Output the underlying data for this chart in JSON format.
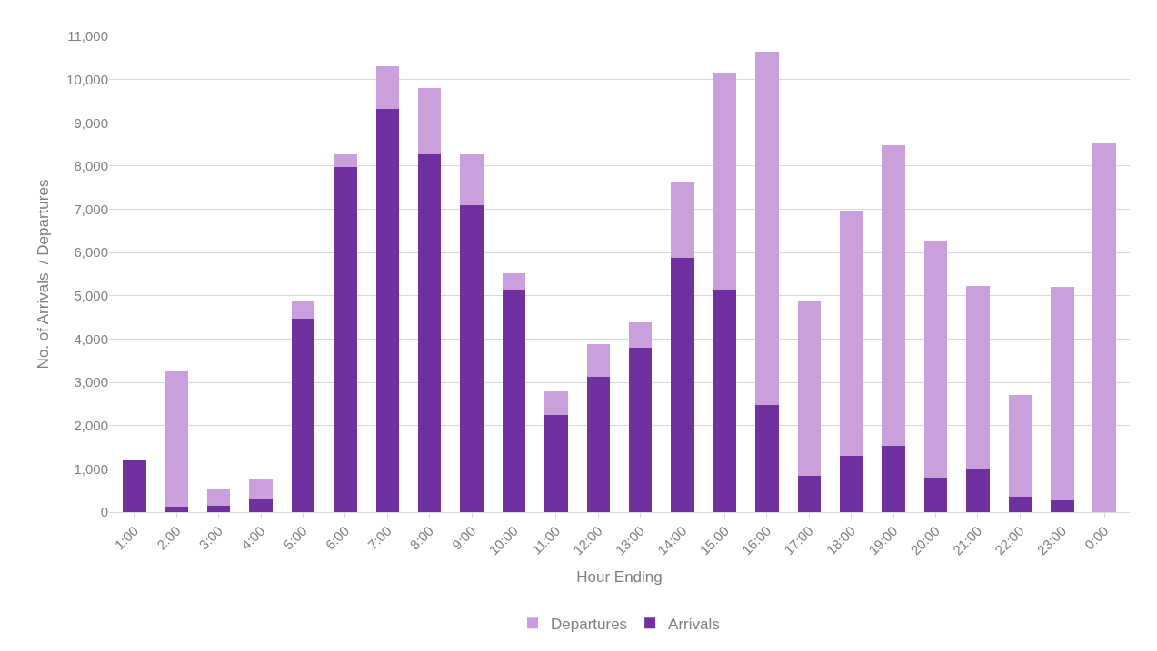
{
  "chart_data": {
    "type": "bar",
    "stacked": true,
    "xlabel": "Hour Ending",
    "ylabel": "No. of Arrivals  / Departures",
    "categories": [
      "1:00",
      "2:00",
      "3:00",
      "4:00",
      "5:00",
      "6:00",
      "7:00",
      "8:00",
      "9:00",
      "10:00",
      "11:00",
      "12:00",
      "13:00",
      "14:00",
      "15:00",
      "16:00",
      "17:00",
      "18:00",
      "19:00",
      "20:00",
      "21:00",
      "22:00",
      "23:00",
      "0:00"
    ],
    "series": [
      {
        "name": "Arrivals",
        "color": "#7030a0",
        "values": [
          1200,
          130,
          150,
          300,
          4480,
          7980,
          9320,
          8280,
          7100,
          5150,
          2250,
          3120,
          3800,
          5880,
          5150,
          2480,
          850,
          1300,
          1530,
          770,
          980,
          360,
          270,
          0
        ]
      },
      {
        "name": "Departures",
        "color": "#c9a0dc",
        "values": [
          0,
          3120,
          370,
          460,
          400,
          300,
          980,
          1520,
          1180,
          370,
          550,
          760,
          580,
          1770,
          5000,
          8170,
          4030,
          5680,
          6950,
          5510,
          4250,
          2340,
          4930,
          8530
        ]
      }
    ],
    "ylim": [
      0,
      11000
    ],
    "yticks": [
      0,
      {
        "value": 1000,
        "label": "1,000"
      },
      {
        "value": 2000,
        "label": "2,000"
      },
      {
        "value": 3000,
        "label": "3,000"
      },
      {
        "value": 4000,
        "label": "4,000"
      },
      {
        "value": 5000,
        "label": "5,000"
      },
      {
        "value": 6000,
        "label": "6,000"
      },
      {
        "value": 7000,
        "label": "7,000"
      },
      {
        "value": 8000,
        "label": "8,000"
      },
      {
        "value": 9000,
        "label": "9,000"
      },
      {
        "value": 10000,
        "label": "10,000"
      },
      {
        "value": 11000,
        "label": "11,000"
      }
    ],
    "grid": "y",
    "legend": "bottom"
  }
}
